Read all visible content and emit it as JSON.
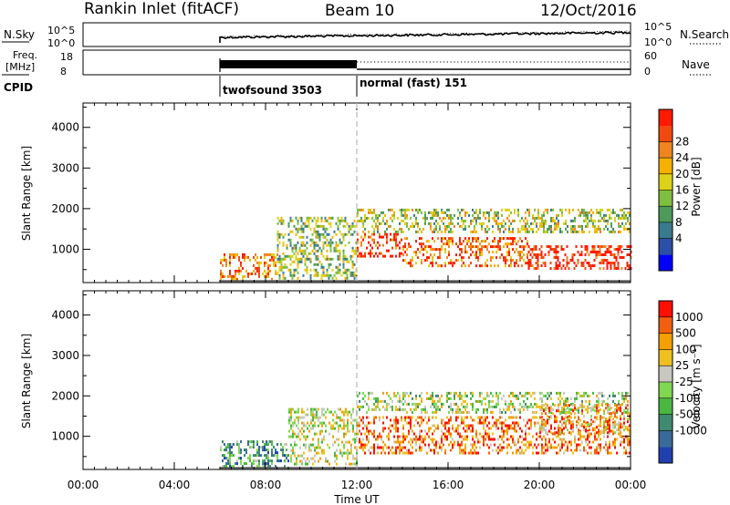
{
  "header": {
    "station": "Rankin Inlet (fitACF)",
    "beam": "Beam 10",
    "date": "12/Oct/2016"
  },
  "top_panels": {
    "nsky_label": "N.Sky",
    "nsky_ticks": [
      "10^5",
      "10^0"
    ],
    "nsearch_label": "N.Search",
    "nsearch_ticks": [
      "10^5",
      "10^0"
    ],
    "freq_label_1": "Freq.",
    "freq_label_2": "[MHz]",
    "freq_ticks": [
      "18",
      "8"
    ],
    "nave_label": "Nave",
    "nave_ticks": [
      "60",
      "0"
    ],
    "cpid_label": "CPID",
    "cpid_segments": [
      {
        "name": "twofsound 3503",
        "start_hour": 6.0
      },
      {
        "name": "normal (fast) 151",
        "start_hour": 12.0
      }
    ]
  },
  "chart_data": [
    {
      "type": "heatmap",
      "quantity": "Power",
      "ylabel": "Slant Range [km]",
      "yticks": [
        1000,
        2000,
        3000,
        4000
      ],
      "ylim": [
        180,
        4600
      ],
      "xlim": [
        0,
        24
      ],
      "colorbar_label": "Power [dB]",
      "colorbar_ticks": [
        "28",
        "24",
        "20",
        "16",
        "12",
        "8",
        "4"
      ],
      "colorbar_colors": [
        "#0000ff",
        "#2c4fa8",
        "#3a7a8e",
        "#4d9a5a",
        "#7fbf3f",
        "#ddd21a",
        "#f6b000",
        "#f08420",
        "#f04a10",
        "#ff1a00"
      ],
      "echo_regions": [
        {
          "start": 6.0,
          "end": 8.5,
          "range_min": 250,
          "range_max": 900,
          "level": 0.75
        },
        {
          "start": 8.5,
          "end": 12.0,
          "range_min": 300,
          "range_max": 1800,
          "level": 0.45
        },
        {
          "start": 12.0,
          "end": 14.0,
          "range_min": 800,
          "range_max": 1400,
          "level": 0.9
        },
        {
          "start": 12.0,
          "end": 24.0,
          "range_min": 1400,
          "range_max": 2000,
          "level": 0.5
        },
        {
          "start": 14.0,
          "end": 19.5,
          "range_min": 600,
          "range_max": 1300,
          "level": 0.8
        },
        {
          "start": 19.5,
          "end": 24.0,
          "range_min": 550,
          "range_max": 1100,
          "level": 0.95
        }
      ]
    },
    {
      "type": "heatmap",
      "quantity": "Velocity",
      "ylabel": "Slant Range [km]",
      "yticks": [
        1000,
        2000,
        3000,
        4000
      ],
      "ylim": [
        180,
        4600
      ],
      "xlim": [
        0,
        24
      ],
      "colorbar_label": "Velocity [m s⁻¹]",
      "colorbar_ticks": [
        "1000",
        "500",
        "100",
        "25",
        "-25",
        "-100",
        "-500",
        "-1000"
      ],
      "colorbar_colors": [
        "#2040b0",
        "#3a6a9a",
        "#3f8a70",
        "#48b840",
        "#80d850",
        "#c8c8c0",
        "#f0c020",
        "#f4a000",
        "#f06010",
        "#ff1000"
      ],
      "echo_regions": [
        {
          "start": 6.0,
          "end": 9.0,
          "range_min": 250,
          "range_max": 900,
          "level": 0.3
        },
        {
          "start": 9.0,
          "end": 12.0,
          "range_min": 300,
          "range_max": 1700,
          "level": 0.55
        },
        {
          "start": 12.0,
          "end": 24.0,
          "range_min": 1600,
          "range_max": 2100,
          "level": 0.5
        },
        {
          "start": 12.0,
          "end": 24.0,
          "range_min": 600,
          "range_max": 1500,
          "level": 0.8
        },
        {
          "start": 20.0,
          "end": 24.0,
          "range_min": 1100,
          "range_max": 1800,
          "level": 0.7
        }
      ]
    }
  ],
  "x_axis": {
    "label": "Time UT",
    "ticks": [
      "00:00",
      "04:00",
      "08:00",
      "12:00",
      "16:00",
      "20:00",
      "00:00"
    ],
    "tick_hours": [
      0,
      4,
      8,
      12,
      16,
      20,
      24
    ],
    "data_start_hour": 6.0,
    "mode_change_hour": 12.0
  }
}
